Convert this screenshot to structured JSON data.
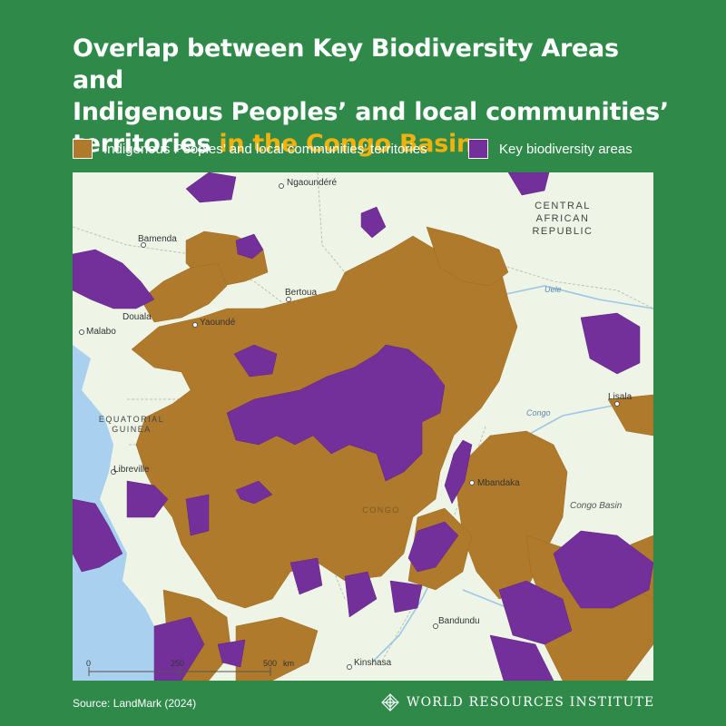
{
  "title": {
    "lines": [
      "Overlap between Key Biodiversity Areas and",
      "Indigenous Peoples’ and local communities’"
    ],
    "line3_prefix": "territories",
    "line3_highlight": "in the Congo Basin"
  },
  "colors": {
    "background": "#2f8a4a",
    "highlight": "#f2b10c",
    "territories": "#b07a2c",
    "kba": "#73309a",
    "map_land": "#eef5e6",
    "map_water": "#a9d0ee"
  },
  "legend": [
    {
      "label": "Indigenous Peoples’ and local communities’ territories",
      "color": "#b07a2c"
    },
    {
      "label": "Key biodiversity areas",
      "color": "#73309a"
    }
  ],
  "map": {
    "country_labels": [
      "CENTRAL",
      "AFRICAN",
      "REPUBLIC"
    ],
    "country_labels_2": [
      "EQUATORIAL",
      "GUINEA"
    ],
    "region_label": "CONGO",
    "places": [
      "Ngaoundéré",
      "Bamenda",
      "Bertoua",
      "Douala",
      "Malabo",
      "Yaoundé",
      "Libreville",
      "Lisala",
      "Mbandaka",
      "Bandundu",
      "Kinshasa",
      "Congo Basin"
    ],
    "rivers": [
      "Uele",
      "Congo"
    ],
    "scale": {
      "ticks": [
        "0",
        "250",
        "500"
      ],
      "unit": "km"
    }
  },
  "footer": {
    "source": "Source: LandMark (2024)",
    "organization": "WORLD RESOURCES INSTITUTE",
    "logo_icon": "wri-logo-icon"
  }
}
